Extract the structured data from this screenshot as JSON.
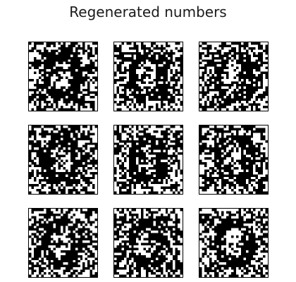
{
  "figure": {
    "title": "Regenerated numbers",
    "rows": 3,
    "cols": 3,
    "panel_resolution": 28,
    "colors": {
      "foreground": "#ffffff",
      "background": "#000000"
    },
    "panels": [
      {
        "name": "regenerated-digit-1"
      },
      {
        "name": "regenerated-digit-2"
      },
      {
        "name": "regenerated-digit-3"
      },
      {
        "name": "regenerated-digit-4"
      },
      {
        "name": "regenerated-digit-5"
      },
      {
        "name": "regenerated-digit-6"
      },
      {
        "name": "regenerated-digit-7"
      },
      {
        "name": "regenerated-digit-8"
      },
      {
        "name": "regenerated-digit-9"
      }
    ]
  }
}
